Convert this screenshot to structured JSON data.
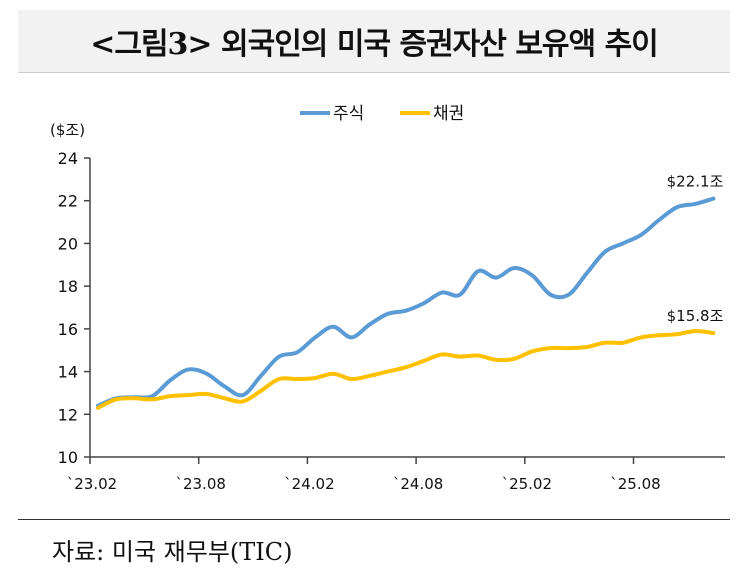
{
  "chart_data": {
    "type": "line",
    "title": "<그림3> 외국인의 미국 증권자산 보유액 추이",
    "ylabel": "($조)",
    "xlabel": "",
    "ylim": [
      10,
      24
    ],
    "yticks": [
      10,
      12,
      14,
      16,
      18,
      20,
      22,
      24
    ],
    "xtick_labels": [
      "`23.02",
      "`23.08",
      "`24.02",
      "`24.08",
      "`25.02",
      "`25.08"
    ],
    "legend_position": "top-center",
    "grid": false,
    "x": [
      "23.02",
      "23.03",
      "23.04",
      "23.05",
      "23.06",
      "23.07",
      "23.08",
      "23.09",
      "23.10",
      "23.11",
      "23.12",
      "24.01",
      "24.02",
      "24.03",
      "24.04",
      "24.05",
      "24.06",
      "24.07",
      "24.08",
      "24.09",
      "24.10",
      "24.11",
      "24.12",
      "25.01",
      "25.02",
      "25.03",
      "25.04",
      "25.05",
      "25.06",
      "25.07",
      "25.08",
      "25.09",
      "25.10",
      "25.11",
      "25.12"
    ],
    "series": [
      {
        "name": "주식",
        "color": "#5b9bd5",
        "end_label": "$22.1조",
        "values": [
          12.4,
          12.75,
          12.8,
          12.85,
          13.6,
          14.1,
          13.9,
          13.3,
          12.9,
          13.8,
          14.7,
          14.9,
          15.6,
          16.1,
          15.6,
          16.2,
          16.7,
          16.85,
          17.2,
          17.7,
          17.6,
          18.7,
          18.4,
          18.85,
          18.5,
          17.6,
          17.6,
          18.6,
          19.6,
          20.0,
          20.4,
          21.1,
          21.7,
          21.85,
          22.1
        ]
      },
      {
        "name": "채권",
        "color": "#ffc000",
        "end_label": "$15.8조",
        "values": [
          12.3,
          12.7,
          12.75,
          12.7,
          12.85,
          12.9,
          12.95,
          12.75,
          12.6,
          13.1,
          13.65,
          13.65,
          13.7,
          13.9,
          13.65,
          13.8,
          14.0,
          14.2,
          14.5,
          14.8,
          14.7,
          14.75,
          14.55,
          14.6,
          14.95,
          15.1,
          15.1,
          15.15,
          15.35,
          15.35,
          15.6,
          15.7,
          15.75,
          15.9,
          15.8
        ]
      }
    ]
  },
  "source": "자료: 미국 재무부(TIC)"
}
